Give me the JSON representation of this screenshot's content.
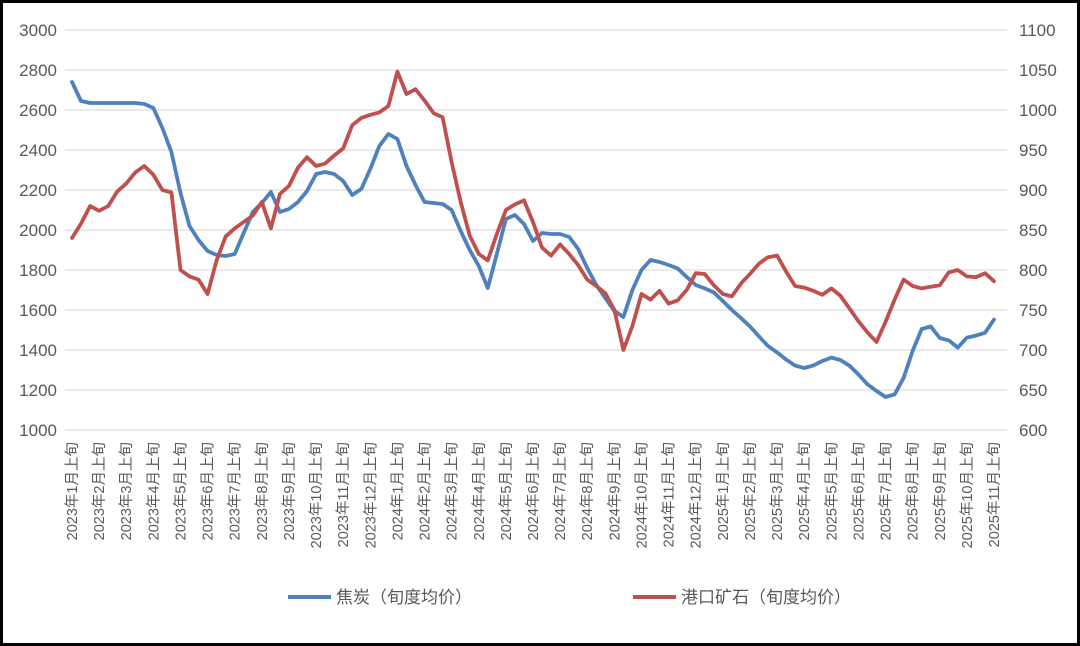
{
  "chart_data": {
    "type": "line",
    "title": "",
    "grid": "horizontal-only",
    "legend_position": "bottom-center",
    "points_per_x_label": 3,
    "left_axis": {
      "min": 1000,
      "max": 3000,
      "step": 200,
      "ticks": [
        "3000",
        "2800",
        "2600",
        "2400",
        "2200",
        "2000",
        "1800",
        "1600",
        "1400",
        "1200",
        "1000"
      ]
    },
    "right_axis": {
      "min": 600,
      "max": 1100,
      "step": 50,
      "ticks": [
        "1100",
        "1050",
        "1000",
        "950",
        "900",
        "850",
        "800",
        "750",
        "700",
        "650",
        "600"
      ]
    },
    "x_tick_labels": [
      "2023年1月上旬",
      "2023年2月上旬",
      "2023年3月上旬",
      "2023年4月上旬",
      "2023年5月上旬",
      "2023年6月上旬",
      "2023年7月上旬",
      "2023年8月上旬",
      "2023年9月上旬",
      "2023年10月上旬",
      "2023年11月上旬",
      "2023年12月上旬",
      "2024年1月上旬",
      "2024年2月上旬",
      "2024年3月上旬",
      "2024年4月上旬",
      "2024年5月上旬",
      "2024年6月上旬",
      "2024年7月上旬",
      "2024年8月上旬",
      "2024年9月上旬",
      "2024年10月上旬",
      "2024年11月上旬",
      "2024年12月上旬",
      "2025年1月上旬",
      "2025年2月上旬",
      "2025年3月上旬",
      "2025年4月上旬",
      "2025年5月上旬",
      "2025年6月上旬",
      "2025年7月上旬",
      "2025年8月上旬",
      "2025年9月上旬",
      "2025年10月上旬",
      "2025年11月上旬"
    ],
    "series": [
      {
        "name": "焦炭（旬度均价）",
        "axis": "left",
        "color": "#4F81BD",
        "values": [
          2740,
          2645,
          2635,
          2635,
          2635,
          2635,
          2635,
          2635,
          2630,
          2610,
          2510,
          2390,
          2185,
          2020,
          1950,
          1895,
          1875,
          1870,
          1880,
          1985,
          2090,
          2135,
          2190,
          2090,
          2105,
          2140,
          2195,
          2280,
          2290,
          2280,
          2245,
          2175,
          2205,
          2305,
          2420,
          2480,
          2455,
          2320,
          2225,
          2140,
          2135,
          2130,
          2100,
          1995,
          1900,
          1820,
          1710,
          1880,
          2055,
          2075,
          2030,
          1945,
          1985,
          1980,
          1980,
          1965,
          1905,
          1810,
          1725,
          1660,
          1595,
          1565,
          1700,
          1800,
          1850,
          1840,
          1825,
          1808,
          1765,
          1725,
          1708,
          1688,
          1645,
          1600,
          1560,
          1518,
          1468,
          1420,
          1388,
          1352,
          1322,
          1310,
          1322,
          1345,
          1362,
          1350,
          1322,
          1278,
          1228,
          1195,
          1165,
          1178,
          1260,
          1395,
          1505,
          1518,
          1460,
          1448,
          1412,
          1462,
          1472,
          1486,
          1552
        ]
      },
      {
        "name": "港口矿石（旬度均价）",
        "axis": "right",
        "color": "#C0504D",
        "values": [
          840,
          858,
          880,
          874,
          880,
          898,
          908,
          922,
          930,
          919,
          900,
          897,
          800,
          792,
          788,
          770,
          812,
          842,
          852,
          860,
          868,
          885,
          852,
          895,
          905,
          928,
          941,
          930,
          933,
          943,
          952,
          981,
          990,
          994,
          997,
          1005,
          1048,
          1020,
          1026,
          1012,
          996,
          991,
          935,
          885,
          843,
          820,
          812,
          845,
          875,
          882,
          887,
          860,
          828,
          818,
          832,
          820,
          806,
          788,
          780,
          771,
          750,
          700,
          730,
          770,
          763,
          774,
          758,
          762,
          775,
          796,
          795,
          781,
          770,
          767,
          783,
          795,
          808,
          816,
          818,
          798,
          780,
          778,
          774,
          769,
          777,
          768,
          752,
          736,
          722,
          710,
          735,
          763,
          788,
          780,
          777,
          779,
          781,
          797,
          800,
          792,
          791,
          796,
          786
        ]
      }
    ],
    "colors": {
      "grid": "#D6D6D6",
      "axis_text": "#595959",
      "frame": "#000000",
      "background": "#FFFFFF"
    }
  },
  "legend": {
    "coke_label": "焦炭（旬度均价）",
    "ore_label": "港口矿石（旬度均价）"
  }
}
